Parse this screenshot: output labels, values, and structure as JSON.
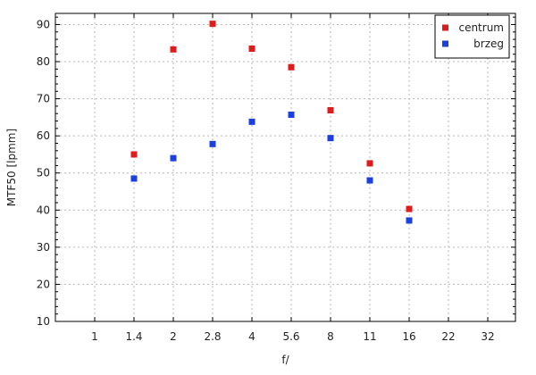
{
  "chart_data": {
    "type": "scatter",
    "title": "",
    "xlabel": "f/",
    "ylabel": "MTF50 [lpmm]",
    "x_categories": [
      "1",
      "1.4",
      "2",
      "2.8",
      "4",
      "5.6",
      "8",
      "11",
      "16",
      "22",
      "32"
    ],
    "y_ticks": [
      10,
      20,
      30,
      40,
      50,
      60,
      70,
      80,
      90
    ],
    "ylim": [
      10,
      93
    ],
    "grid": true,
    "legend_position": "top-right",
    "series": [
      {
        "name": "centrum",
        "color": "#e01b1b",
        "points": [
          {
            "x": "1.4",
            "y": 55
          },
          {
            "x": "2",
            "y": 83.3
          },
          {
            "x": "2.8",
            "y": 90.2
          },
          {
            "x": "4",
            "y": 83.5
          },
          {
            "x": "5.6",
            "y": 78.5
          },
          {
            "x": "8",
            "y": 66.9
          },
          {
            "x": "11",
            "y": 52.6
          },
          {
            "x": "16",
            "y": 40.3
          }
        ]
      },
      {
        "name": "brzeg",
        "color": "#1b3fe0",
        "points": [
          {
            "x": "1.4",
            "y": 48.5
          },
          {
            "x": "2",
            "y": 54
          },
          {
            "x": "2.8",
            "y": 57.8
          },
          {
            "x": "4",
            "y": 63.8
          },
          {
            "x": "5.6",
            "y": 65.7
          },
          {
            "x": "8",
            "y": 59.4
          },
          {
            "x": "11",
            "y": 48
          },
          {
            "x": "16",
            "y": 37.2
          }
        ]
      }
    ]
  }
}
